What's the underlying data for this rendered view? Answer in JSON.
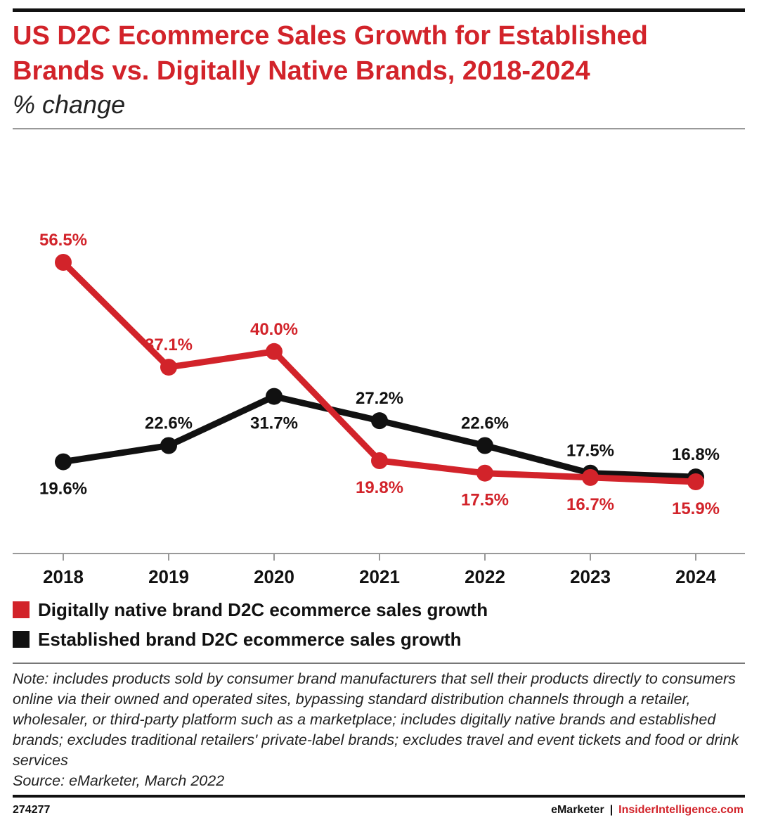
{
  "header": {
    "title": "US D2C Ecommerce Sales Growth for Established Brands vs. Digitally Native Brands, 2018-2024",
    "subtitle": "% change"
  },
  "colors": {
    "digital": "#d2232a",
    "established": "#111111",
    "axis": "#999999"
  },
  "chart_data": {
    "type": "line",
    "title": "US D2C Ecommerce Sales Growth for Established Brands vs. Digitally Native Brands, 2018-2024",
    "subtitle": "% change",
    "x": [
      "2018",
      "2019",
      "2020",
      "2021",
      "2022",
      "2023",
      "2024"
    ],
    "ylim": [
      10,
      60
    ],
    "grid": false,
    "legend_position": "bottom-left",
    "series": [
      {
        "name": "Digitally native brand D2C ecommerce sales growth",
        "color": "#d2232a",
        "values": [
          56.5,
          37.1,
          40.0,
          19.8,
          17.5,
          16.7,
          15.9
        ],
        "labels": [
          "56.5%",
          "37.1%",
          "40.0%",
          "19.8%",
          "17.5%",
          "16.7%",
          "15.9%"
        ],
        "label_side": [
          "above",
          "above",
          "above",
          "below",
          "below",
          "below",
          "below"
        ]
      },
      {
        "name": "Established brand D2C ecommerce sales growth",
        "color": "#111111",
        "values": [
          19.6,
          22.6,
          31.7,
          27.2,
          22.6,
          17.5,
          16.8
        ],
        "labels": [
          "19.6%",
          "22.6%",
          "31.7%",
          "27.2%",
          "22.6%",
          "17.5%",
          "16.8%"
        ],
        "label_side": [
          "below",
          "above",
          "below",
          "above",
          "above",
          "above",
          "above"
        ]
      }
    ]
  },
  "note": {
    "text": "Note: includes products sold by consumer brand manufacturers that sell their products directly to consumers online via their owned and operated sites, bypassing standard distribution channels through a retailer, wholesaler, or third-party platform such as a marketplace; includes digitally native brands and established brands; excludes traditional retailers' private-label brands; excludes travel and event tickets and food or drink services",
    "source": "Source: eMarketer, March 2022"
  },
  "footer": {
    "id": "274277",
    "brand_emarketer": "eMarketer",
    "separator": "|",
    "brand_insider": "InsiderIntelligence.com"
  }
}
